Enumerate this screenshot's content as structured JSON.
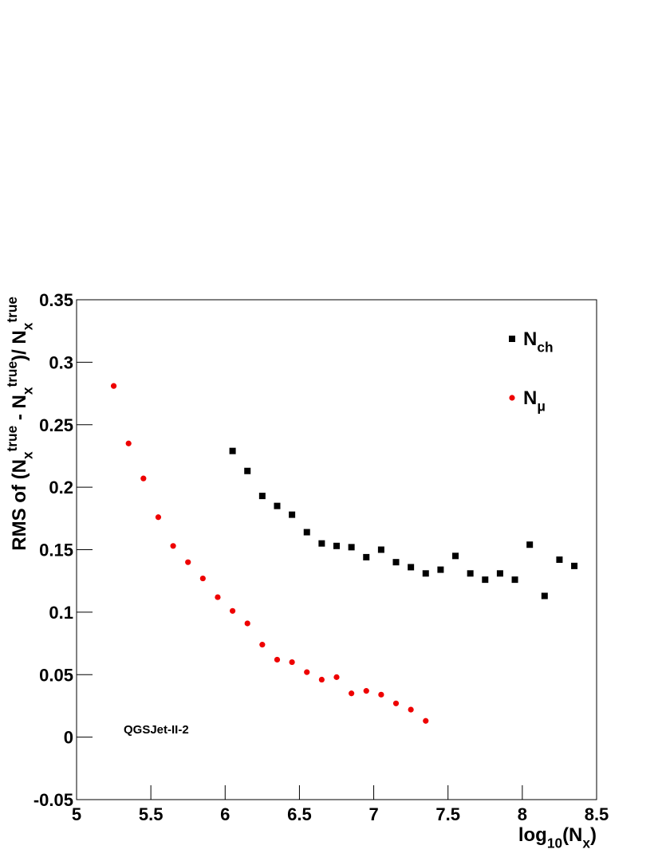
{
  "chart_data": {
    "type": "scatter",
    "xlabel": [
      {
        "text": "log"
      },
      {
        "text": "10",
        "script": "sub"
      },
      {
        "text": "(N"
      },
      {
        "text": "x",
        "script": "sub"
      },
      {
        "text": ")"
      }
    ],
    "ylabel": [
      {
        "text": "RMS of (N"
      },
      {
        "text": "x",
        "script": "sub"
      },
      {
        "text": "true",
        "script": "sup"
      },
      {
        "text": " - N"
      },
      {
        "text": "x",
        "script": "sub"
      },
      {
        "text": "true",
        "script": "sup"
      },
      {
        "text": ")/ N"
      },
      {
        "text": "x",
        "script": "sub"
      },
      {
        "text": "true",
        "script": "sup"
      }
    ],
    "annotation": "QGSJet-II-2",
    "xlim": [
      5,
      8.5
    ],
    "xticks": [
      5,
      5.5,
      6,
      6.5,
      7,
      7.5,
      8,
      8.5
    ],
    "ylim": [
      -0.05,
      0.35
    ],
    "yticks": [
      -0.05,
      0,
      0.05,
      0.1,
      0.15,
      0.2,
      0.25,
      0.3,
      0.35
    ],
    "series": [
      {
        "name": [
          {
            "text": "N"
          },
          {
            "text": "ch",
            "script": "sub"
          }
        ],
        "color": "#000000",
        "marker": "square",
        "x": [
          6.05,
          6.15,
          6.25,
          6.35,
          6.45,
          6.55,
          6.65,
          6.75,
          6.85,
          6.95,
          7.05,
          7.15,
          7.25,
          7.35,
          7.45,
          7.55,
          7.65,
          7.75,
          7.85,
          7.95,
          8.05,
          8.15,
          8.25,
          8.35
        ],
        "values": [
          0.229,
          0.213,
          0.193,
          0.185,
          0.178,
          0.164,
          0.155,
          0.153,
          0.152,
          0.144,
          0.15,
          0.14,
          0.136,
          0.131,
          0.134,
          0.145,
          0.131,
          0.126,
          0.131,
          0.126,
          0.154,
          0.113,
          0.142,
          0.137
        ]
      },
      {
        "name": [
          {
            "text": "N"
          },
          {
            "text": "μ",
            "script": "sub"
          }
        ],
        "color": "#ee0000",
        "marker": "circle",
        "x": [
          5.25,
          5.35,
          5.45,
          5.55,
          5.65,
          5.75,
          5.85,
          5.95,
          6.05,
          6.15,
          6.25,
          6.35,
          6.45,
          6.55,
          6.65,
          6.75,
          6.85,
          6.95,
          7.05,
          7.15,
          7.25,
          7.35
        ],
        "values": [
          0.281,
          0.235,
          0.207,
          0.176,
          0.153,
          0.14,
          0.127,
          0.112,
          0.101,
          0.091,
          0.074,
          0.062,
          0.06,
          0.052,
          0.046,
          0.048,
          0.035,
          0.037,
          0.034,
          0.027,
          0.022,
          0.013
        ]
      }
    ]
  }
}
